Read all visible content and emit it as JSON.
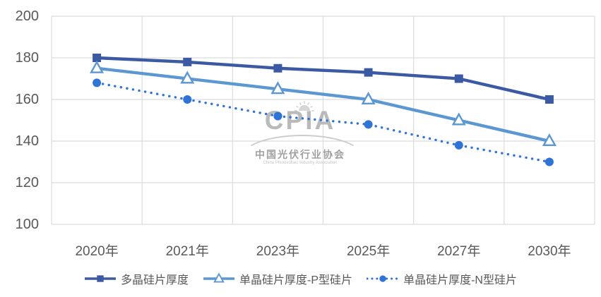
{
  "chart_data": {
    "type": "line",
    "title": "",
    "xlabel": "",
    "ylabel": "",
    "categories": [
      "2020年",
      "2021年",
      "2023年",
      "2025年",
      "2027年",
      "2030年"
    ],
    "series": [
      {
        "name": "多晶硅片厚度",
        "values": [
          180,
          178,
          175,
          173,
          170,
          160
        ],
        "color": "#3C59A3",
        "marker": "square",
        "line_style": "solid"
      },
      {
        "name": "单晶硅片厚度-P型硅片",
        "values": [
          175,
          170,
          165,
          160,
          150,
          140
        ],
        "color": "#5B97D1",
        "marker": "triangle-open",
        "line_style": "solid"
      },
      {
        "name": "单晶硅片厚度-N型硅片",
        "values": [
          168,
          160,
          152,
          148,
          138,
          130
        ],
        "color": "#2E74D6",
        "marker": "circle",
        "line_style": "dotted"
      }
    ],
    "ylim": [
      100,
      200
    ],
    "y_ticks": [
      200,
      180,
      160,
      140,
      120,
      100
    ],
    "grid": true,
    "legend_position": "bottom"
  },
  "watermark": {
    "acronym": "CPIA",
    "name_cn": "中国光伏行业协会",
    "name_en": "China Photovoltaic Industry Association"
  },
  "style": {
    "grid_color": "#DCDCDC",
    "tick_label_color": "#595959",
    "legend_label_color": "#595959",
    "background": "#FFFFFF"
  }
}
